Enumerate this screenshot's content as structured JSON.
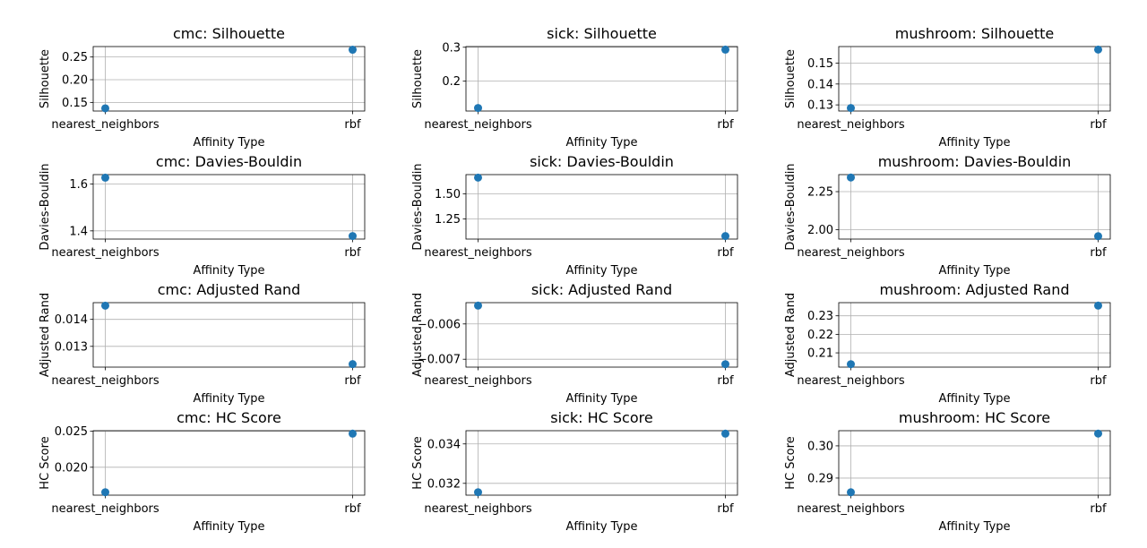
{
  "chart_data": [
    {
      "type": "scatter",
      "title": "cmc: Silhouette",
      "xlabel": "Affinity Type",
      "ylabel": "Silhouette",
      "categories": [
        "nearest_neighbors",
        "rbf"
      ],
      "values": [
        0.137,
        0.266
      ],
      "ylim": [
        0.131,
        0.273
      ],
      "yticks": [
        0.15,
        0.2,
        0.25
      ],
      "ytick_labels": [
        "0.15",
        "0.20",
        "0.25"
      ],
      "grid": true,
      "color": "#1f77b4"
    },
    {
      "type": "scatter",
      "title": "sick: Silhouette",
      "xlabel": "Affinity Type",
      "ylabel": "Silhouette",
      "categories": [
        "nearest_neighbors",
        "rbf"
      ],
      "values": [
        0.121,
        0.293
      ],
      "ylim": [
        0.112,
        0.302
      ],
      "yticks": [
        0.2,
        0.3
      ],
      "ytick_labels": [
        "0.2",
        "0.3"
      ],
      "grid": true,
      "color": "#1f77b4"
    },
    {
      "type": "scatter",
      "title": "mushroom: Silhouette",
      "xlabel": "Affinity Type",
      "ylabel": "Silhouette",
      "categories": [
        "nearest_neighbors",
        "rbf"
      ],
      "values": [
        0.1285,
        0.1565
      ],
      "ylim": [
        0.12705,
        0.15795
      ],
      "yticks": [
        0.13,
        0.14,
        0.15
      ],
      "ytick_labels": [
        "0.13",
        "0.14",
        "0.15"
      ],
      "grid": true,
      "color": "#1f77b4"
    },
    {
      "type": "scatter",
      "title": "cmc: Davies-Bouldin",
      "xlabel": "Affinity Type",
      "ylabel": "Davies-Bouldin",
      "categories": [
        "nearest_neighbors",
        "rbf"
      ],
      "values": [
        1.627,
        1.378
      ],
      "ylim": [
        1.365,
        1.64
      ],
      "yticks": [
        1.4,
        1.6
      ],
      "ytick_labels": [
        "1.4",
        "1.6"
      ],
      "grid": true,
      "color": "#1f77b4"
    },
    {
      "type": "scatter",
      "title": "sick: Davies-Bouldin",
      "xlabel": "Affinity Type",
      "ylabel": "Davies-Bouldin",
      "categories": [
        "nearest_neighbors",
        "rbf"
      ],
      "values": [
        1.66,
        1.08
      ],
      "ylim": [
        1.05,
        1.69
      ],
      "yticks": [
        1.25,
        1.5
      ],
      "ytick_labels": [
        "1.25",
        "1.50"
      ],
      "grid": true,
      "color": "#1f77b4"
    },
    {
      "type": "scatter",
      "title": "mushroom: Davies-Bouldin",
      "xlabel": "Affinity Type",
      "ylabel": "Davies-Bouldin",
      "categories": [
        "nearest_neighbors",
        "rbf"
      ],
      "values": [
        2.343,
        1.957
      ],
      "ylim": [
        1.938,
        2.362
      ],
      "yticks": [
        2.0,
        2.25
      ],
      "ytick_labels": [
        "2.00",
        "2.25"
      ],
      "grid": true,
      "color": "#1f77b4"
    },
    {
      "type": "scatter",
      "title": "cmc: Adjusted Rand",
      "xlabel": "Affinity Type",
      "ylabel": "Adjusted Rand",
      "categories": [
        "nearest_neighbors",
        "rbf"
      ],
      "values": [
        0.01451,
        0.01234
      ],
      "ylim": [
        0.01223,
        0.01462
      ],
      "yticks": [
        0.013,
        0.014
      ],
      "ytick_labels": [
        "0.013",
        "0.014"
      ],
      "grid": true,
      "color": "#1f77b4"
    },
    {
      "type": "scatter",
      "title": "sick: Adjusted Rand",
      "xlabel": "Affinity Type",
      "ylabel": "Adjusted Rand",
      "categories": [
        "nearest_neighbors",
        "rbf"
      ],
      "values": [
        -0.00548,
        -0.00714
      ],
      "ylim": [
        -0.007223,
        -0.005397
      ],
      "yticks": [
        -0.007,
        -0.006
      ],
      "ytick_labels": [
        "−0.007",
        "−0.006"
      ],
      "grid": true,
      "color": "#1f77b4"
    },
    {
      "type": "scatter",
      "title": "mushroom: Adjusted Rand",
      "xlabel": "Affinity Type",
      "ylabel": "Adjusted Rand",
      "categories": [
        "nearest_neighbors",
        "rbf"
      ],
      "values": [
        0.2039,
        0.2355
      ],
      "ylim": [
        0.2023,
        0.2371
      ],
      "yticks": [
        0.21,
        0.22,
        0.23
      ],
      "ytick_labels": [
        "0.21",
        "0.22",
        "0.23"
      ],
      "grid": true,
      "color": "#1f77b4"
    },
    {
      "type": "scatter",
      "title": "cmc: HC Score",
      "xlabel": "Affinity Type",
      "ylabel": "HC Score",
      "categories": [
        "nearest_neighbors",
        "rbf"
      ],
      "values": [
        0.01653,
        0.02467
      ],
      "ylim": [
        0.01612,
        0.02508
      ],
      "yticks": [
        0.02,
        0.025
      ],
      "ytick_labels": [
        "0.020",
        "0.025"
      ],
      "grid": true,
      "color": "#1f77b4"
    },
    {
      "type": "scatter",
      "title": "sick: HC Score",
      "xlabel": "Affinity Type",
      "ylabel": "HC Score",
      "categories": [
        "nearest_neighbors",
        "rbf"
      ],
      "values": [
        0.03155,
        0.03452
      ],
      "ylim": [
        0.0314,
        0.03467
      ],
      "yticks": [
        0.032,
        0.034
      ],
      "ytick_labels": [
        "0.032",
        "0.034"
      ],
      "grid": true,
      "color": "#1f77b4"
    },
    {
      "type": "scatter",
      "title": "mushroom: HC Score",
      "xlabel": "Affinity Type",
      "ylabel": "HC Score",
      "categories": [
        "nearest_neighbors",
        "rbf"
      ],
      "values": [
        0.2856,
        0.3038
      ],
      "ylim": [
        0.2847,
        0.3047
      ],
      "yticks": [
        0.29,
        0.3
      ],
      "ytick_labels": [
        "0.29",
        "0.30"
      ],
      "grid": true,
      "color": "#1f77b4"
    }
  ]
}
